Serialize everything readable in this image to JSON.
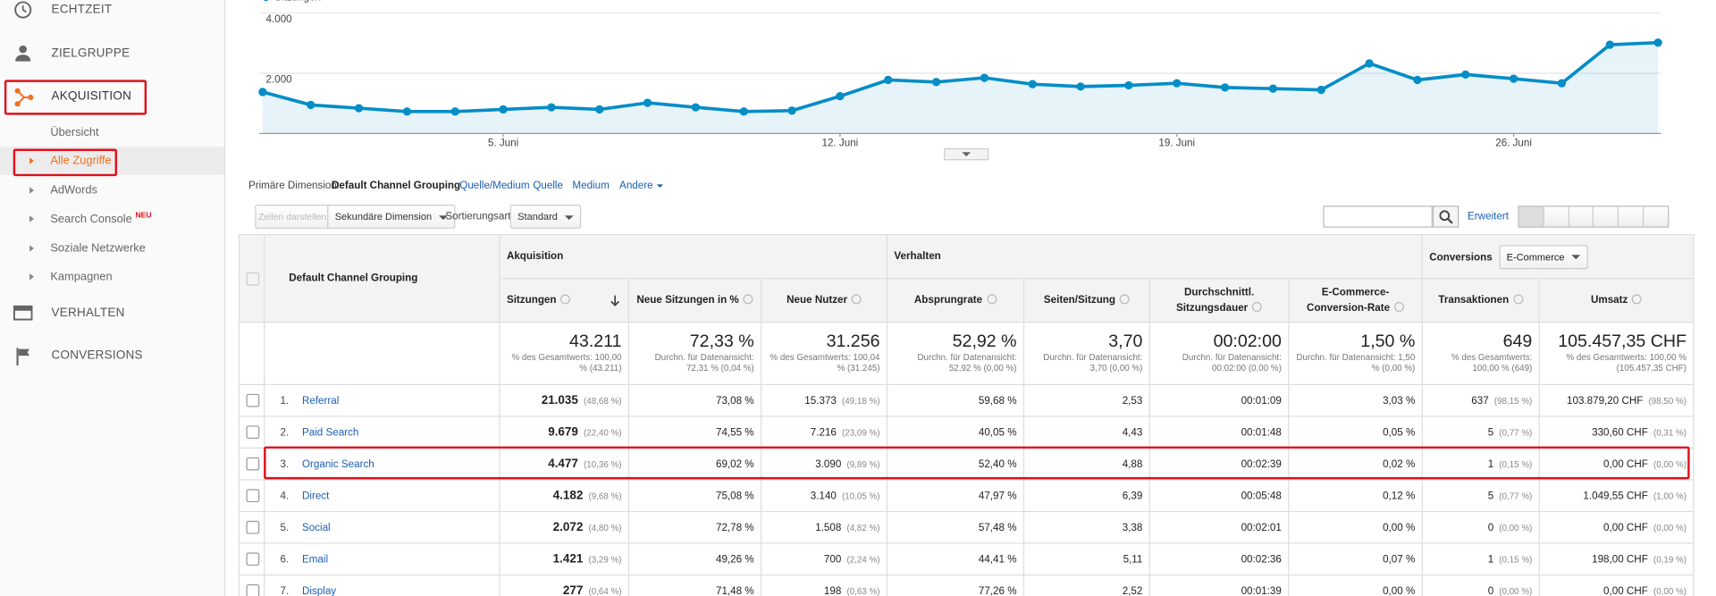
{
  "sidebar": {
    "items": [
      "ECHTZEIT",
      "ZIELGRUPPE",
      "AKQUISITION"
    ],
    "acquisition_subitems": [
      "Übersicht",
      "Alle Zugriffe",
      "AdWords",
      "Search Console",
      "Soziale Netzwerke",
      "Kampagnen"
    ],
    "badge": "NEU",
    "more_items": [
      "VERHALTEN",
      "CONVERSIONS"
    ]
  },
  "chart_data": {
    "type": "line",
    "x": [
      null,
      null,
      null,
      null,
      null,
      "5. Juni",
      null,
      null,
      null,
      null,
      null,
      null,
      "12. Juni",
      null,
      null,
      null,
      null,
      null,
      null,
      "19. Juni",
      null,
      null,
      null,
      null,
      null,
      null,
      "26. Juni",
      null,
      null,
      null
    ],
    "series": [
      {
        "name": "Sitzungen",
        "color": "#058dc7",
        "values": [
          1380,
          950,
          840,
          730,
          730,
          800,
          870,
          800,
          1020,
          870,
          730,
          760,
          1240,
          1780,
          1710,
          1850,
          1640,
          1560,
          1600,
          1670,
          1530,
          1490,
          1450,
          2330,
          1780,
          1960,
          1820,
          1670,
          2950,
          3020
        ]
      }
    ],
    "ylim": [
      0,
      4400
    ],
    "yticks": [
      {
        "value": 2000,
        "label": "2.000"
      },
      {
        "value": 4000,
        "label": "4.000"
      }
    ],
    "grid": true
  },
  "dimension_bar": {
    "label": "Primäre Dimension:",
    "active": "Default Channel Grouping",
    "links": [
      "Quelle/Medium",
      "Quelle",
      "Medium",
      "Andere"
    ]
  },
  "toolbar": {
    "show_rows": "Zeilen darstellen",
    "secondary": "Sekundäre Dimension",
    "sort_label": "Sortierungsart:",
    "sort_value": "Standard",
    "advanced": "Erweitert"
  },
  "table": {
    "dimension_header": "Default Channel Grouping",
    "groups": [
      "Akquisition",
      "Verhalten",
      "Conversions"
    ],
    "conversion_select": "E-Commerce",
    "columns": [
      "Sitzungen",
      "Neue Sitzungen in %",
      "Neue Nutzer",
      "Absprungrate",
      "Seiten/Sitzung",
      "Durchschnittl. Sitzungsdauer",
      "E-Commerce-Conversion-Rate",
      "Transaktionen",
      "Umsatz"
    ],
    "totals": [
      [
        "43.211",
        "% des Gesamtwerts: 100,00 % (43.211)"
      ],
      [
        "72,33 %",
        "Durchn. für Datenansicht: 72,31 % (0,04 %)"
      ],
      [
        "31.256",
        "% des Gesamtwerts: 100,04 % (31.245)"
      ],
      [
        "52,92 %",
        "Durchn. für Datenansicht: 52,92 % (0,00 %)"
      ],
      [
        "3,70",
        "Durchn. für Datenansicht: 3,70 (0,00 %)"
      ],
      [
        "00:02:00",
        "Durchn. für Datenansicht: 00:02:00 (0,00 %)"
      ],
      [
        "1,50 %",
        "Durchn. für Datenansicht: 1,50 % (0,00 %)"
      ],
      [
        "649",
        "% des Gesamtwerts: 100,00 % (649)"
      ],
      [
        "105.457,35 CHF",
        "% des Gesamtwerts: 100,00 % (105.457,35 CHF)"
      ]
    ],
    "rows": [
      [
        "1.",
        "Referral",
        "21.035",
        "(48,68 %)",
        "73,08 %",
        "15.373",
        "(49,18 %)",
        "59,68 %",
        "2,53",
        "00:01:09",
        "3,03 %",
        "637",
        "(98,15 %)",
        "103.879,20 CHF",
        "(98,50 %)"
      ],
      [
        "2.",
        "Paid Search",
        "9.679",
        "(22,40 %)",
        "74,55 %",
        "7.216",
        "(23,09 %)",
        "40,05 %",
        "4,43",
        "00:01:48",
        "0,05 %",
        "5",
        "(0,77 %)",
        "330,60 CHF",
        "(0,31 %)"
      ],
      [
        "3.",
        "Organic Search",
        "4.477",
        "(10,36 %)",
        "69,02 %",
        "3.090",
        "(9,89 %)",
        "52,40 %",
        "4,88",
        "00:02:39",
        "0,02 %",
        "1",
        "(0,15 %)",
        "0,00 CHF",
        "(0,00 %)"
      ],
      [
        "4.",
        "Direct",
        "4.182",
        "(9,68 %)",
        "75,08 %",
        "3.140",
        "(10,05 %)",
        "47,97 %",
        "6,39",
        "00:05:48",
        "0,12 %",
        "5",
        "(0,77 %)",
        "1.049,55 CHF",
        "(1,00 %)"
      ],
      [
        "5.",
        "Social",
        "2.072",
        "(4,80 %)",
        "72,78 %",
        "1.508",
        "(4,82 %)",
        "57,48 %",
        "3,38",
        "00:02:01",
        "0,00 %",
        "0",
        "(0,00 %)",
        "0,00 CHF",
        "(0,00 %)"
      ],
      [
        "6.",
        "Email",
        "1.421",
        "(3,29 %)",
        "49,26 %",
        "700",
        "(2,24 %)",
        "44,41 %",
        "5,11",
        "00:02:36",
        "0,07 %",
        "1",
        "(0,15 %)",
        "198,00 CHF",
        "(0,19 %)"
      ],
      [
        "7.",
        "Display",
        "277",
        "(0,64 %)",
        "71,48 %",
        "198",
        "(0,63 %)",
        "77,26 %",
        "2,52",
        "00:01:39",
        "0,00 %",
        "0",
        "(0,00 %)",
        "0,00 CHF",
        "(0,00 %)"
      ]
    ]
  }
}
